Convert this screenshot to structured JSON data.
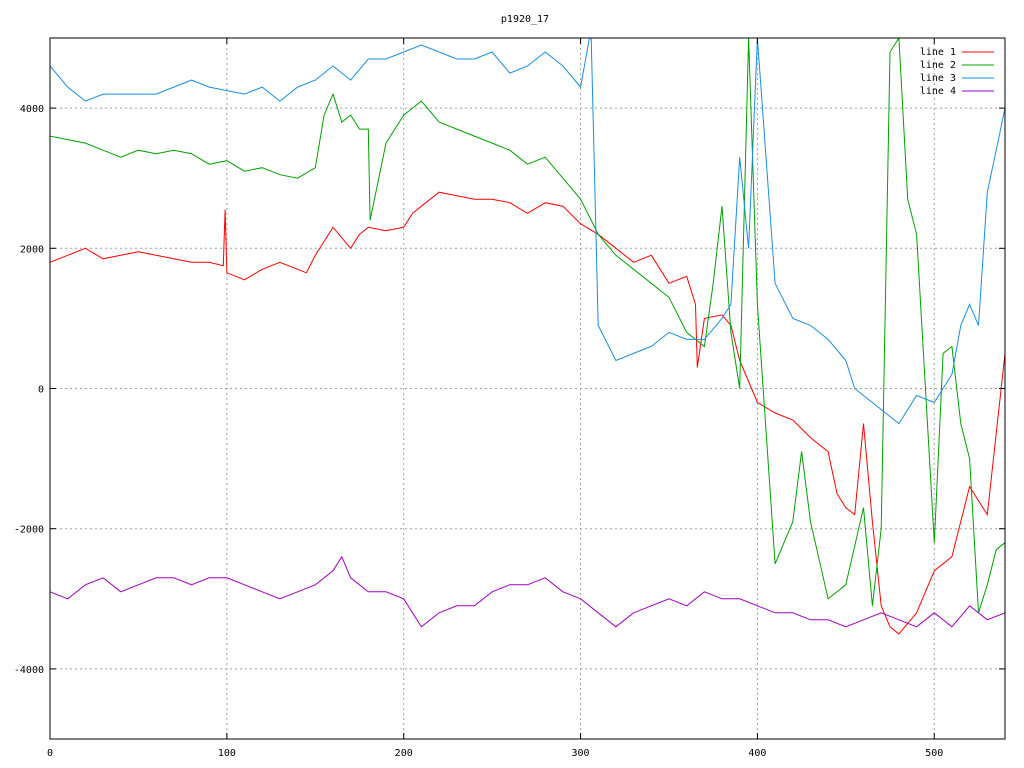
{
  "chart_data": {
    "type": "line",
    "title": "p1920_17",
    "xlabel": "",
    "ylabel": "",
    "xlim": [
      0,
      540
    ],
    "ylim": [
      -5000,
      5000
    ],
    "xticks": [
      0,
      100,
      200,
      300,
      400,
      500
    ],
    "yticks": [
      -4000,
      -2000,
      0,
      2000,
      4000
    ],
    "grid": true,
    "legend_position": "top-right",
    "series": [
      {
        "name": "line 1",
        "color": "#ff0000",
        "x": [
          0,
          10,
          20,
          30,
          40,
          50,
          60,
          70,
          80,
          90,
          98,
          99,
          100,
          105,
          110,
          120,
          130,
          140,
          145,
          150,
          160,
          170,
          175,
          180,
          190,
          200,
          205,
          210,
          220,
          230,
          240,
          250,
          260,
          270,
          280,
          290,
          300,
          310,
          320,
          330,
          340,
          350,
          360,
          365,
          366,
          370,
          380,
          385,
          390,
          395,
          400,
          410,
          420,
          430,
          440,
          445,
          450,
          455,
          460,
          465,
          470,
          475,
          480,
          490,
          500,
          510,
          520,
          530,
          540
        ],
        "y": [
          1800,
          1900,
          2000,
          1850,
          1900,
          1950,
          1900,
          1850,
          1800,
          1800,
          1750,
          2550,
          1650,
          1600,
          1550,
          1700,
          1800,
          1700,
          1650,
          1900,
          2300,
          2000,
          2200,
          2300,
          2250,
          2300,
          2500,
          2600,
          2800,
          2750,
          2700,
          2700,
          2650,
          2500,
          2650,
          2600,
          2350,
          2200,
          2000,
          1800,
          1900,
          1500,
          1600,
          1200,
          300,
          1000,
          1050,
          900,
          400,
          100,
          -200,
          -350,
          -450,
          -700,
          -900,
          -1500,
          -1700,
          -1800,
          -500,
          -1900,
          -3100,
          -3400,
          -3500,
          -3200,
          -2600,
          -2400,
          -1400,
          -1800,
          500
        ]
      },
      {
        "name": "line 2",
        "color": "#00a000",
        "x": [
          0,
          10,
          20,
          30,
          40,
          50,
          60,
          70,
          80,
          90,
          100,
          110,
          120,
          130,
          140,
          150,
          155,
          160,
          165,
          170,
          175,
          180,
          181,
          190,
          200,
          205,
          210,
          220,
          230,
          240,
          250,
          260,
          270,
          280,
          290,
          300,
          310,
          320,
          330,
          340,
          350,
          360,
          370,
          375,
          380,
          385,
          390,
          395,
          400,
          410,
          420,
          425,
          430,
          440,
          450,
          460,
          465,
          470,
          475,
          480,
          485,
          490,
          500,
          505,
          510,
          515,
          520,
          525,
          530,
          535,
          540
        ],
        "y": [
          3600,
          3550,
          3500,
          3400,
          3300,
          3400,
          3350,
          3400,
          3350,
          3200,
          3250,
          3100,
          3150,
          3050,
          3000,
          3150,
          3900,
          4200,
          3800,
          3900,
          3700,
          3700,
          2400,
          3500,
          3900,
          4000,
          4100,
          3800,
          3700,
          3600,
          3500,
          3400,
          3200,
          3300,
          3000,
          2700,
          2200,
          1900,
          1700,
          1500,
          1300,
          800,
          600,
          1500,
          2600,
          800,
          0,
          5000,
          1200,
          -2500,
          -1900,
          -900,
          -1900,
          -3000,
          -2800,
          -1700,
          -3100,
          -2000,
          4800,
          5000,
          2700,
          2200,
          -2200,
          500,
          600,
          -500,
          -1000,
          -3200,
          -2800,
          -2300,
          -2200
        ]
      },
      {
        "name": "line 3",
        "color": "#1a8de0",
        "x": [
          0,
          10,
          20,
          30,
          40,
          50,
          60,
          70,
          80,
          90,
          100,
          110,
          120,
          130,
          140,
          150,
          160,
          170,
          180,
          190,
          200,
          210,
          220,
          230,
          240,
          250,
          260,
          270,
          280,
          290,
          300,
          305,
          306,
          310,
          320,
          330,
          340,
          350,
          360,
          370,
          380,
          385,
          390,
          395,
          400,
          410,
          420,
          430,
          440,
          450,
          455,
          460,
          470,
          480,
          490,
          500,
          510,
          515,
          520,
          525,
          530,
          535,
          540
        ],
        "y": [
          4600,
          4300,
          4100,
          4200,
          4200,
          4200,
          4200,
          4300,
          4400,
          4300,
          4250,
          4200,
          4300,
          4100,
          4300,
          4400,
          4600,
          4400,
          4700,
          4700,
          4800,
          4900,
          4800,
          4700,
          4700,
          4800,
          4500,
          4600,
          4800,
          4600,
          4300,
          5000,
          5000,
          900,
          400,
          500,
          600,
          800,
          700,
          700,
          1000,
          1200,
          3300,
          2000,
          5000,
          1500,
          1000,
          900,
          700,
          400,
          0,
          -100,
          -300,
          -500,
          -100,
          -200,
          200,
          900,
          1200,
          900,
          2800,
          3400,
          4000
        ]
      },
      {
        "name": "line 4",
        "color": "#a000c0",
        "x": [
          0,
          10,
          20,
          30,
          40,
          50,
          60,
          70,
          80,
          90,
          100,
          110,
          120,
          130,
          140,
          150,
          160,
          165,
          170,
          180,
          190,
          200,
          210,
          220,
          230,
          240,
          250,
          260,
          270,
          280,
          290,
          300,
          310,
          320,
          330,
          340,
          350,
          360,
          370,
          380,
          390,
          400,
          410,
          420,
          430,
          440,
          450,
          460,
          470,
          480,
          490,
          500,
          510,
          520,
          530,
          540
        ],
        "y": [
          -2900,
          -3000,
          -2800,
          -2700,
          -2900,
          -2800,
          -2700,
          -2700,
          -2800,
          -2700,
          -2700,
          -2800,
          -2900,
          -3000,
          -2900,
          -2800,
          -2600,
          -2400,
          -2700,
          -2900,
          -2900,
          -3000,
          -3400,
          -3200,
          -3100,
          -3100,
          -2900,
          -2800,
          -2800,
          -2700,
          -2900,
          -3000,
          -3200,
          -3400,
          -3200,
          -3100,
          -3000,
          -3100,
          -2900,
          -3000,
          -3000,
          -3100,
          -3200,
          -3200,
          -3300,
          -3300,
          -3400,
          -3300,
          -3200,
          -3300,
          -3400,
          -3200,
          -3400,
          -3100,
          -3300,
          -3200
        ]
      }
    ]
  }
}
